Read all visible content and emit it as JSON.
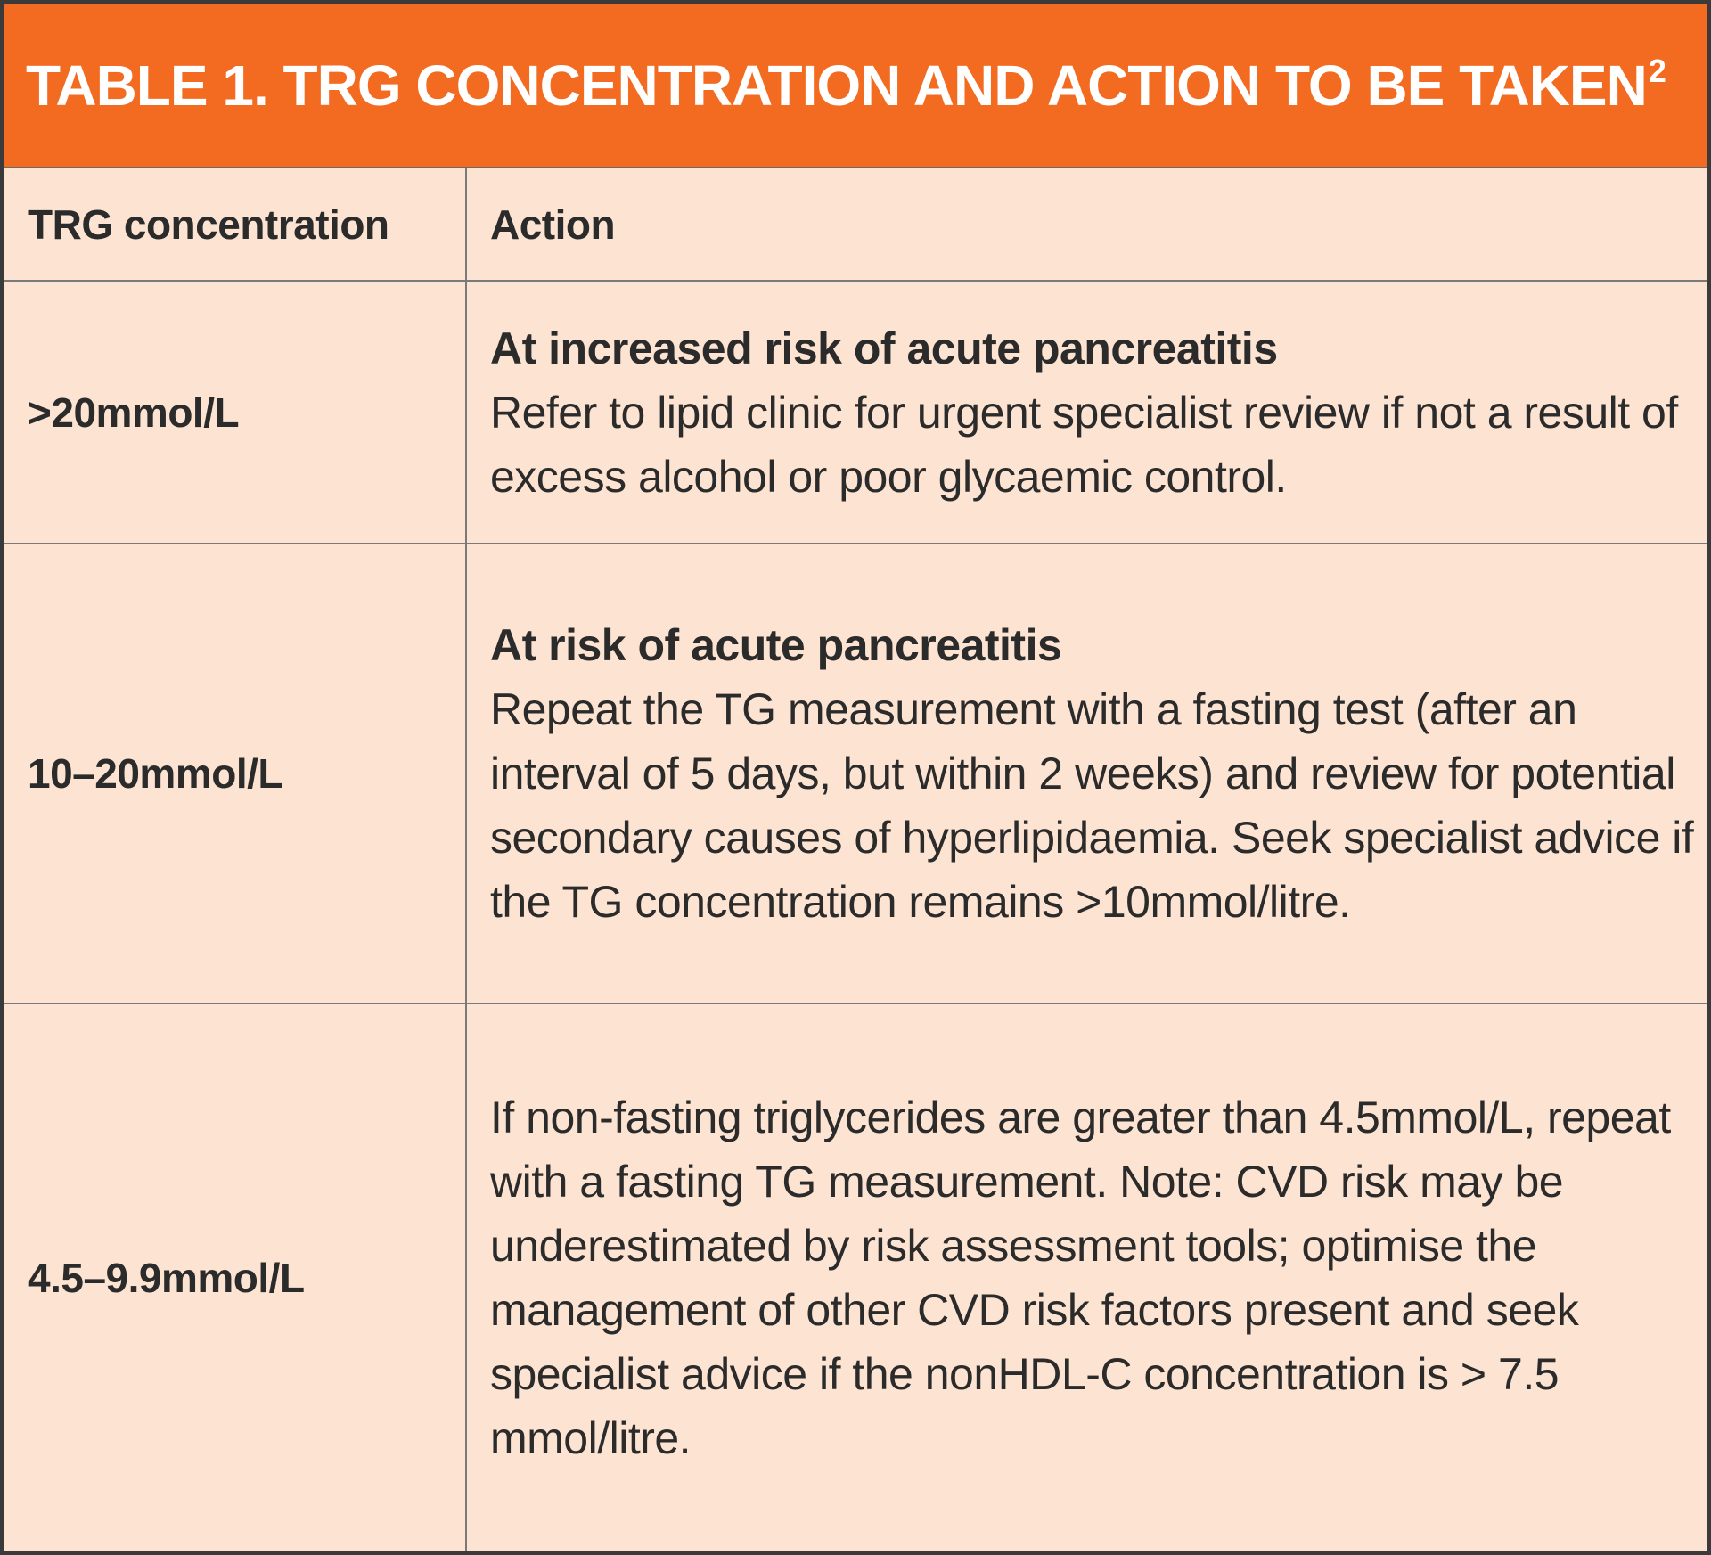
{
  "table": {
    "title": "TABLE 1. TRG CONCENTRATION AND ACTION TO BE TAKEN",
    "title_superscript": "2",
    "columns": [
      "TRG concentration",
      "Action"
    ],
    "rows": [
      {
        "concentration": ">20mmol/L",
        "action_heading": "At increased risk of acute pancreatitis",
        "action_body": "Refer to lipid clinic for urgent specialist review if not a result of excess alcohol or poor glycaemic control."
      },
      {
        "concentration": "10–20mmol/L",
        "action_heading": "At risk of acute pancreatitis",
        "action_body": "Repeat the TG measurement with a fasting test (after an interval of 5 days, but within 2 weeks) and review for potential secondary causes of hyperlipidaemia. Seek specialist advice if the TG concentration remains >10mmol/litre."
      },
      {
        "concentration": "4.5–9.9mmol/L",
        "action_heading": "",
        "action_body": "If non-fasting triglycerides are greater than 4.5mmol/L, repeat with a fasting TG measurement. Note: CVD risk may be underestimated by risk assessment tools; optimise the management of other CVD risk factors present and seek specialist advice if the nonHDL-C concentration is > 7.5 mmol/litre."
      }
    ]
  },
  "colors": {
    "title_background": "#f26b21",
    "title_text": "#ffffff",
    "table_background": "#fde4d2",
    "border": "#3a3a3a",
    "text": "#2b2b2b"
  }
}
